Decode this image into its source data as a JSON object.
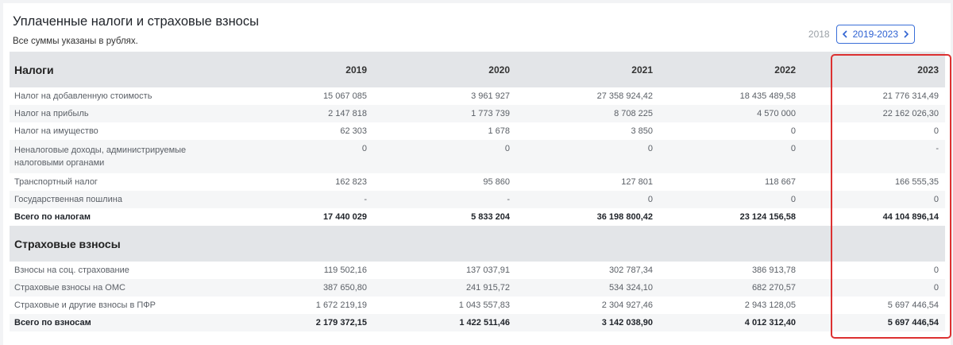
{
  "header": {
    "title": "Уплаченные налоги и страховые взносы",
    "subtitle": "Все суммы указаны в рублях."
  },
  "year_nav": {
    "prev_year": "2018",
    "range": "2019-2023",
    "accent_color": "#2f62d2"
  },
  "table": {
    "years": [
      "2019",
      "2020",
      "2021",
      "2022",
      "2023"
    ],
    "taxes": {
      "title": "Налоги",
      "rows": [
        {
          "label": "Налог на добавленную стоимость",
          "values": [
            "15 067 085",
            "3 961 927",
            "27 358 924,42",
            "18 435 489,58",
            "21 776 314,49"
          ]
        },
        {
          "label": "Налог на прибыль",
          "values": [
            "2 147 818",
            "1 773 739",
            "8 708 225",
            "4 570 000",
            "22 162 026,30"
          ]
        },
        {
          "label": "Налог на имущество",
          "values": [
            "62 303",
            "1 678",
            "3 850",
            "0",
            "0"
          ]
        },
        {
          "label": "Неналоговые доходы, администрируемые налоговыми органами",
          "values": [
            "0",
            "0",
            "0",
            "0",
            "-"
          ]
        },
        {
          "label": "Транспортный налог",
          "values": [
            "162 823",
            "95 860",
            "127 801",
            "118 667",
            "166 555,35"
          ]
        },
        {
          "label": "Государственная пошлина",
          "values": [
            "-",
            "-",
            "0",
            "0",
            "0"
          ]
        }
      ],
      "total": {
        "label": "Всего по налогам",
        "values": [
          "17 440 029",
          "5 833 204",
          "36 198 800,42",
          "23 124 156,58",
          "44 104 896,14"
        ]
      }
    },
    "contributions": {
      "title": "Страховые взносы",
      "rows": [
        {
          "label": "Взносы на соц. страхование",
          "values": [
            "119 502,16",
            "137 037,91",
            "302 787,34",
            "386 913,78",
            "0"
          ]
        },
        {
          "label": "Страховые взносы на ОМС",
          "values": [
            "387 650,80",
            "241 915,72",
            "534 324,10",
            "682 270,57",
            "0"
          ]
        },
        {
          "label": "Страховые и другие взносы в ПФР",
          "values": [
            "1 672 219,19",
            "1 043 557,83",
            "2 304 927,46",
            "2 943 128,05",
            "5 697 446,54"
          ]
        }
      ],
      "total": {
        "label": "Всего по взносам",
        "values": [
          "2 179 372,15",
          "1 422 511,46",
          "3 142 038,90",
          "4 012 312,40",
          "5 697 446,54"
        ]
      }
    }
  },
  "highlight_color": "#dc3131"
}
